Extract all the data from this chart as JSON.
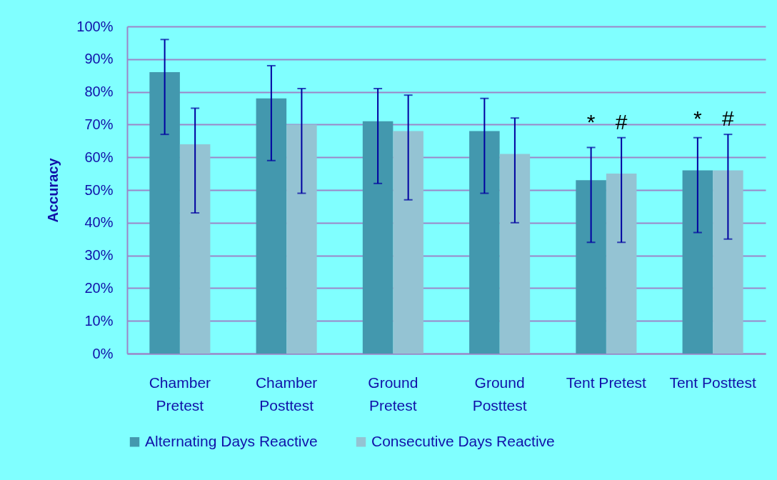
{
  "chart_data": {
    "type": "bar",
    "ylabel": "Accuracy",
    "categories": [
      "Chamber Pretest",
      "Chamber Posttest",
      "Ground Pretest",
      "Ground Posttest",
      "Tent Pretest",
      "Tent Posttest"
    ],
    "series": [
      {
        "name": "Alternating Days Reactive",
        "color": "#4398ae",
        "values": [
          86,
          78,
          71,
          68,
          53,
          56
        ],
        "errors": [
          [
            67,
            96
          ],
          [
            59,
            88
          ],
          [
            52,
            81
          ],
          [
            49,
            78
          ],
          [
            34,
            63
          ],
          [
            37,
            66
          ]
        ]
      },
      {
        "name": "Consecutive Days Reactive",
        "color": "#94c3d3",
        "values": [
          64,
          70,
          68,
          61,
          55,
          56
        ],
        "errors": [
          [
            43,
            75
          ],
          [
            49,
            81
          ],
          [
            47,
            79
          ],
          [
            40,
            72
          ],
          [
            34,
            66
          ],
          [
            35,
            67
          ]
        ]
      }
    ],
    "ylim": [
      0,
      100
    ],
    "yticks": [
      {
        "value": 0,
        "label": "0%"
      },
      {
        "value": 10,
        "label": "10%"
      },
      {
        "value": 20,
        "label": "20%"
      },
      {
        "value": 30,
        "label": "30%"
      },
      {
        "value": 40,
        "label": "40%"
      },
      {
        "value": 50,
        "label": "50%"
      },
      {
        "value": 60,
        "label": "60%"
      },
      {
        "value": 70,
        "label": "70%"
      },
      {
        "value": 80,
        "label": "80%"
      },
      {
        "value": 90,
        "label": "90%"
      },
      {
        "value": 100,
        "label": "100%"
      }
    ],
    "annotations": [
      {
        "text": "*",
        "x": "Tent Pretest",
        "y": 53
      },
      {
        "text": "#",
        "x": "Tent Pretest",
        "y": 55
      },
      {
        "text": "*",
        "x": "Tent Posttest",
        "y": 56
      },
      {
        "text": "#",
        "x": "Tent Posttest",
        "y": 56
      }
    ],
    "grid": "y",
    "legend": "bottom"
  }
}
